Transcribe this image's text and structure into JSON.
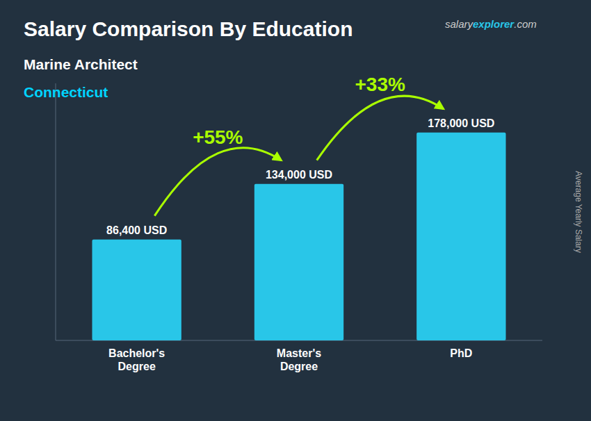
{
  "chart_data": {
    "type": "bar",
    "title": "Salary Comparison By Education",
    "subtitle": [
      "Marine Architect",
      "Connecticut"
    ],
    "ylabel": "Average Yearly Salary",
    "watermark": [
      "salary",
      "explorer",
      ".com"
    ],
    "categories": [
      "Bachelor's\nDegree",
      "Master's\nDegree",
      "PhD"
    ],
    "values": [
      86400,
      134000,
      178000
    ],
    "value_labels": [
      "86,400 USD",
      "134,000 USD",
      "178,000 USD"
    ],
    "data_labels": true,
    "color": "#29C6E8",
    "ylim": [
      0,
      220000
    ],
    "tick_labels": "x",
    "annotations": [
      "+55%",
      "+33%"
    ]
  }
}
